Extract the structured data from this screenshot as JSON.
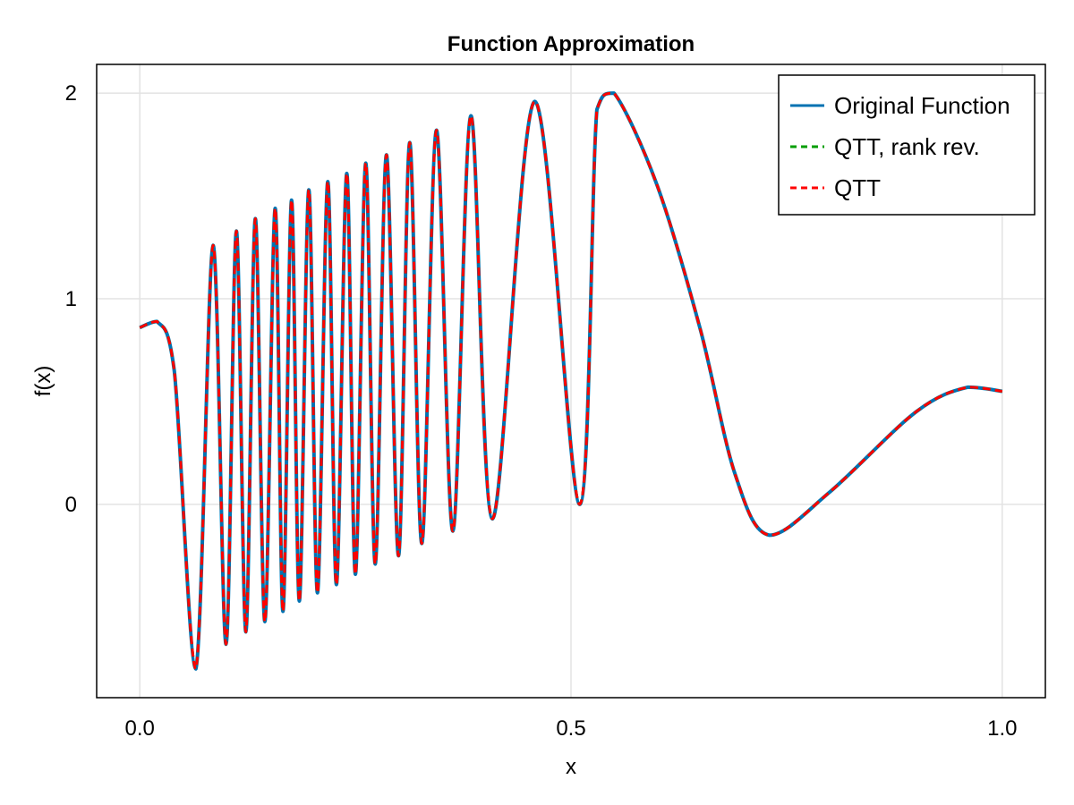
{
  "chart_data": {
    "type": "line",
    "title": "Function Approximation",
    "xlabel": "x",
    "ylabel": "f(x)",
    "xlim": [
      -0.05,
      1.05
    ],
    "ylim": [
      -0.94,
      2.14
    ],
    "xticks": [
      0.0,
      0.5,
      1.0
    ],
    "xtick_labels": [
      "0.0",
      "0.5",
      "1.0"
    ],
    "yticks": [
      0,
      1,
      2
    ],
    "ytick_labels": [
      "0",
      "1",
      "2"
    ],
    "grid": true,
    "legend_position": "top-right",
    "series": [
      {
        "name": "Original Function",
        "color": "#0072b2",
        "style": "solid",
        "x": [
          0.0,
          0.02,
          0.04,
          0.065,
          0.085,
          0.1,
          0.112,
          0.123,
          0.134,
          0.145,
          0.157,
          0.166,
          0.176,
          0.185,
          0.196,
          0.206,
          0.218,
          0.228,
          0.24,
          0.25,
          0.262,
          0.273,
          0.286,
          0.3,
          0.313,
          0.327,
          0.344,
          0.363,
          0.384,
          0.409,
          0.458,
          0.51,
          0.53,
          0.55,
          0.6,
          0.65,
          0.69,
          0.73,
          0.8,
          0.9,
          0.96,
          1.0
        ],
        "y": [
          0.86,
          0.89,
          0.65,
          -0.8,
          1.26,
          -0.68,
          1.33,
          -0.62,
          1.39,
          -0.57,
          1.44,
          -0.52,
          1.48,
          -0.47,
          1.53,
          -0.43,
          1.57,
          -0.39,
          1.61,
          -0.34,
          1.66,
          -0.29,
          1.7,
          -0.25,
          1.76,
          -0.19,
          1.82,
          -0.13,
          1.89,
          -0.07,
          1.96,
          0.0,
          1.92,
          2.0,
          1.55,
          0.85,
          0.15,
          -0.15,
          0.06,
          0.45,
          0.57,
          0.55
        ]
      },
      {
        "name": "QTT, rank rev.",
        "color": "#009e00",
        "style": "dashed",
        "x": [
          0.0,
          0.02,
          0.04,
          0.065,
          0.085,
          0.1,
          0.112,
          0.123,
          0.134,
          0.145,
          0.157,
          0.166,
          0.176,
          0.185,
          0.196,
          0.206,
          0.218,
          0.228,
          0.24,
          0.25,
          0.262,
          0.273,
          0.286,
          0.3,
          0.313,
          0.327,
          0.344,
          0.363,
          0.384,
          0.409,
          0.458,
          0.51,
          0.53,
          0.55,
          0.6,
          0.65,
          0.69,
          0.73,
          0.8,
          0.9,
          0.96,
          1.0
        ],
        "y": [
          0.86,
          0.89,
          0.65,
          -0.8,
          1.26,
          -0.68,
          1.33,
          -0.62,
          1.39,
          -0.57,
          1.44,
          -0.52,
          1.48,
          -0.47,
          1.53,
          -0.43,
          1.57,
          -0.39,
          1.61,
          -0.34,
          1.66,
          -0.29,
          1.7,
          -0.25,
          1.76,
          -0.19,
          1.82,
          -0.13,
          1.89,
          -0.07,
          1.96,
          0.0,
          1.92,
          2.0,
          1.55,
          0.85,
          0.15,
          -0.15,
          0.06,
          0.45,
          0.57,
          0.55
        ]
      },
      {
        "name": "QTT",
        "color": "#ff0000",
        "style": "dashed",
        "x": [
          0.0,
          0.02,
          0.04,
          0.065,
          0.085,
          0.1,
          0.112,
          0.123,
          0.134,
          0.145,
          0.157,
          0.166,
          0.176,
          0.185,
          0.196,
          0.206,
          0.218,
          0.228,
          0.24,
          0.25,
          0.262,
          0.273,
          0.286,
          0.3,
          0.313,
          0.327,
          0.344,
          0.363,
          0.384,
          0.409,
          0.458,
          0.51,
          0.53,
          0.55,
          0.6,
          0.65,
          0.69,
          0.73,
          0.8,
          0.9,
          0.96,
          1.0
        ],
        "y": [
          0.86,
          0.89,
          0.65,
          -0.8,
          1.26,
          -0.68,
          1.33,
          -0.62,
          1.39,
          -0.57,
          1.44,
          -0.52,
          1.48,
          -0.47,
          1.53,
          -0.43,
          1.57,
          -0.39,
          1.61,
          -0.34,
          1.66,
          -0.29,
          1.7,
          -0.25,
          1.76,
          -0.19,
          1.82,
          -0.13,
          1.89,
          -0.07,
          1.96,
          0.0,
          1.92,
          2.0,
          1.55,
          0.85,
          0.15,
          -0.15,
          0.06,
          0.45,
          0.57,
          0.55
        ]
      }
    ]
  }
}
